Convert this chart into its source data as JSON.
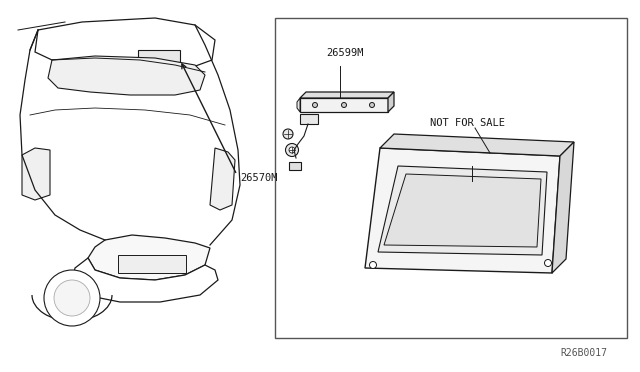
{
  "bg_color": "#ffffff",
  "line_color": "#1a1a1a",
  "label_26570M": "26570M",
  "label_26599M": "26599M",
  "label_not_for_sale": "NOT FOR SALE",
  "label_ref": "R26B0017",
  "font_size_label": 7.5,
  "font_size_ref": 7.0
}
